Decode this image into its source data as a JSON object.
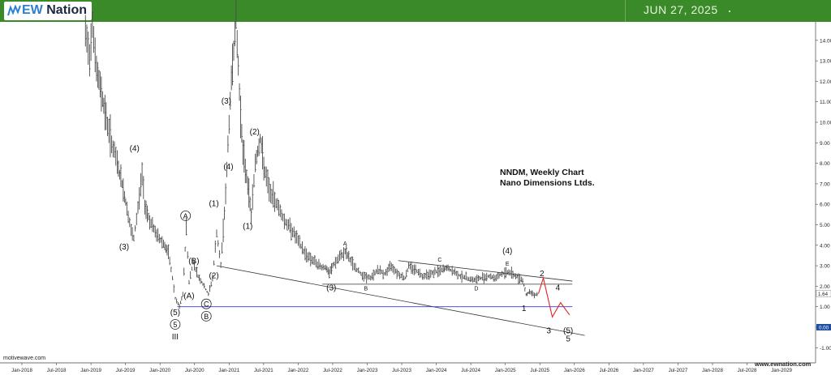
{
  "header": {
    "brand_prefix": "EW",
    "brand_name": "Nation",
    "date": "JUN 27, 2025"
  },
  "chart_title": {
    "line1": "NNDM, Weekly Chart",
    "line2": "Nano Dimensions Ltds."
  },
  "footer": {
    "credit": "motivewave.com",
    "site": "www.ewnation.com"
  },
  "colors": {
    "header_bg": "#3b8a2a",
    "price_bars": "#4a4a4a",
    "support_line": "#3a3ad6",
    "projection": "#e02424",
    "last_price_tag": "#1f4fa0"
  },
  "chart_data": {
    "type": "ohlc-bar",
    "title": "NNDM, Weekly Chart",
    "subtitle": "Nano Dimensions Ltds.",
    "x_ticks": [
      "Jan-2018",
      "Jul-2018",
      "Jan-2019",
      "Jul-2019",
      "Jan-2020",
      "Jul-2020",
      "Jan-2021",
      "Jul-2021",
      "Jan-2022",
      "Jul-2022",
      "Jan-2023",
      "Jul-2023",
      "Jan-2024",
      "Jul-2024",
      "Jan-2025",
      "Jul-2025",
      "Jan-2026",
      "Jul-2026",
      "Jan-2027",
      "Jul-2027",
      "Jan-2028",
      "Jul-2028",
      "Jan-2029"
    ],
    "y_ticks": [
      "14.00",
      "13.00",
      "12.00",
      "11.00",
      "10.00",
      "9.00",
      "8.00",
      "7.00",
      "6.00",
      "5.00",
      "4.00",
      "3.00",
      "2.00",
      "1.00",
      "0.00",
      "-1.00"
    ],
    "ylim": [
      -1.3,
      15.5
    ],
    "last_price": "1.64",
    "axis_tag": "0.00",
    "price_path": [
      [
        2018.92,
        14.3
      ],
      [
        2018.98,
        13.2
      ],
      [
        2019.02,
        15.0
      ],
      [
        2019.08,
        12.5
      ],
      [
        2019.15,
        11.5
      ],
      [
        2019.22,
        10.2
      ],
      [
        2019.3,
        9.0
      ],
      [
        2019.38,
        8.0
      ],
      [
        2019.45,
        7.0
      ],
      [
        2019.52,
        5.8
      ],
      [
        2019.58,
        4.7
      ],
      [
        2019.62,
        4.3
      ],
      [
        2019.68,
        5.8
      ],
      [
        2019.74,
        7.5
      ],
      [
        2019.78,
        6.0
      ],
      [
        2019.85,
        5.2
      ],
      [
        2019.95,
        4.5
      ],
      [
        2020.05,
        4.1
      ],
      [
        2020.12,
        3.6
      ],
      [
        2020.18,
        2.4
      ],
      [
        2020.22,
        1.4
      ],
      [
        2020.28,
        1.0
      ],
      [
        2020.33,
        1.6
      ],
      [
        2020.38,
        4.9
      ],
      [
        2020.42,
        2.2
      ],
      [
        2020.48,
        3.2
      ],
      [
        2020.55,
        2.5
      ],
      [
        2020.62,
        2.1
      ],
      [
        2020.7,
        1.6
      ],
      [
        2020.76,
        2.4
      ],
      [
        2020.82,
        4.6
      ],
      [
        2020.88,
        3.0
      ],
      [
        2020.95,
        6.5
      ],
      [
        2021.0,
        10.0
      ],
      [
        2021.05,
        13.0
      ],
      [
        2021.1,
        15.0
      ],
      [
        2021.15,
        11.5
      ],
      [
        2021.2,
        8.5
      ],
      [
        2021.27,
        7.0
      ],
      [
        2021.32,
        5.5
      ],
      [
        2021.38,
        8.0
      ],
      [
        2021.45,
        9.2
      ],
      [
        2021.52,
        7.5
      ],
      [
        2021.6,
        6.5
      ],
      [
        2021.7,
        6.0
      ],
      [
        2021.8,
        5.2
      ],
      [
        2021.9,
        4.8
      ],
      [
        2022.0,
        4.2
      ],
      [
        2022.1,
        3.6
      ],
      [
        2022.2,
        3.3
      ],
      [
        2022.3,
        3.0
      ],
      [
        2022.4,
        2.9
      ],
      [
        2022.45,
        2.6
      ],
      [
        2022.5,
        3.0
      ],
      [
        2022.6,
        3.4
      ],
      [
        2022.68,
        3.7
      ],
      [
        2022.75,
        3.3
      ],
      [
        2022.85,
        2.8
      ],
      [
        2022.95,
        2.5
      ],
      [
        2023.05,
        2.4
      ],
      [
        2023.15,
        2.8
      ],
      [
        2023.25,
        2.6
      ],
      [
        2023.35,
        3.0
      ],
      [
        2023.45,
        2.6
      ],
      [
        2023.55,
        2.4
      ],
      [
        2023.6,
        3.0
      ],
      [
        2023.7,
        2.8
      ],
      [
        2023.8,
        2.5
      ],
      [
        2023.9,
        2.6
      ],
      [
        2024.0,
        2.7
      ],
      [
        2024.1,
        2.8
      ],
      [
        2024.15,
        2.9
      ],
      [
        2024.25,
        2.7
      ],
      [
        2024.35,
        2.5
      ],
      [
        2024.45,
        2.4
      ],
      [
        2024.55,
        2.3
      ],
      [
        2024.65,
        2.4
      ],
      [
        2024.75,
        2.5
      ],
      [
        2024.85,
        2.4
      ],
      [
        2024.95,
        2.6
      ],
      [
        2025.05,
        2.7
      ],
      [
        2025.15,
        2.5
      ],
      [
        2025.25,
        2.3
      ],
      [
        2025.3,
        1.6
      ],
      [
        2025.35,
        1.7
      ],
      [
        2025.42,
        1.6
      ],
      [
        2025.48,
        1.64
      ]
    ],
    "wave_labels": [
      {
        "text": "(4)",
        "x": 2019.63,
        "y": 8.6
      },
      {
        "text": "(3)",
        "x": 2019.48,
        "y": 3.8
      },
      {
        "text": "A",
        "x": 2020.37,
        "y": 5.3,
        "circled": true
      },
      {
        "text": "(B)",
        "x": 2020.49,
        "y": 3.1
      },
      {
        "text": "(A)",
        "x": 2020.42,
        "y": 1.4
      },
      {
        "text": "C",
        "x": 2020.67,
        "y": 1.0,
        "circled": true
      },
      {
        "text": "B",
        "x": 2020.67,
        "y": 0.4,
        "circled": true
      },
      {
        "text": "(5)",
        "x": 2020.22,
        "y": 0.6
      },
      {
        "text": "5",
        "x": 2020.22,
        "y": 0.0,
        "circled": true
      },
      {
        "text": "III",
        "x": 2020.22,
        "y": -0.6
      },
      {
        "text": "(2)",
        "x": 2020.78,
        "y": 2.4
      },
      {
        "text": "(1)",
        "x": 2020.78,
        "y": 5.9
      },
      {
        "text": "(4)",
        "x": 2020.99,
        "y": 7.7
      },
      {
        "text": "(3)",
        "x": 2020.96,
        "y": 10.9
      },
      {
        "text": "(2)",
        "x": 2021.37,
        "y": 9.4
      },
      {
        "text": "(1)",
        "x": 2021.27,
        "y": 4.8
      },
      {
        "text": "(3)",
        "x": 2022.48,
        "y": 1.8
      },
      {
        "text": "A",
        "x": 2022.68,
        "y": 4.0
      },
      {
        "text": "B",
        "x": 2022.98,
        "y": 1.8
      },
      {
        "text": "C",
        "x": 2024.05,
        "y": 3.2
      },
      {
        "text": "D",
        "x": 2024.58,
        "y": 1.8
      },
      {
        "text": "E",
        "x": 2025.03,
        "y": 3.0
      },
      {
        "text": "(4)",
        "x": 2025.03,
        "y": 3.6
      },
      {
        "text": "1",
        "x": 2025.27,
        "y": 0.8
      },
      {
        "text": "2",
        "x": 2025.53,
        "y": 2.5
      },
      {
        "text": "3",
        "x": 2025.63,
        "y": -0.3
      },
      {
        "text": "4",
        "x": 2025.76,
        "y": 1.8
      },
      {
        "text": "(5)",
        "x": 2025.91,
        "y": -0.3
      },
      {
        "text": "5",
        "x": 2025.91,
        "y": -0.7
      }
    ],
    "trendlines": [
      {
        "name": "channel-upper",
        "from": [
          2023.45,
          3.25
        ],
        "to": [
          2025.97,
          2.25
        ]
      },
      {
        "name": "channel-lower",
        "from": [
          2022.35,
          2.1
        ],
        "to": [
          2025.97,
          2.1
        ]
      },
      {
        "name": "wedge-lower",
        "from": [
          2020.82,
          3.0
        ],
        "to": [
          2026.15,
          -0.4
        ]
      },
      {
        "name": "support",
        "from": [
          2020.25,
          1.0
        ],
        "to": [
          2025.97,
          1.0
        ]
      }
    ],
    "projection_path": [
      [
        2025.48,
        1.64
      ],
      [
        2025.55,
        2.4
      ],
      [
        2025.68,
        0.5
      ],
      [
        2025.8,
        1.2
      ],
      [
        2025.93,
        0.6
      ]
    ],
    "grid": false,
    "legend": "none"
  }
}
